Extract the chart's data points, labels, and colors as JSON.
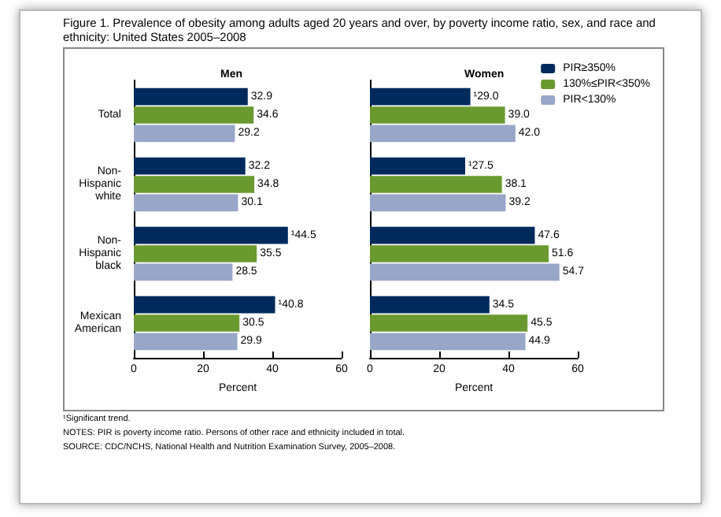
{
  "chart_data": [
    {
      "type": "bar",
      "orientation": "horizontal",
      "title": "Figure 1. Prevalence of obesity among adults aged 20 years and over, by poverty income ratio, sex, and race and ethnicity: United States 2005–2008",
      "subtitle": "Men",
      "xlabel": "Percent",
      "categories": [
        "Total",
        "Non-Hispanic white",
        "Non-Hispanic black",
        "Mexican American"
      ],
      "xlim": [
        0,
        60
      ],
      "xticks": [
        0,
        20,
        40,
        60
      ],
      "grid": false,
      "legend": false,
      "series": [
        {
          "color": "#002a5c",
          "values": [
            32.9,
            32.2,
            44.5,
            40.8
          ],
          "value_labels": [
            "32.9",
            "32.2",
            "¹44.5",
            "¹40.8"
          ]
        },
        {
          "color": "#6a9a2f",
          "values": [
            34.6,
            34.8,
            35.5,
            30.5
          ],
          "value_labels": [
            "34.6",
            "34.8",
            "35.5",
            "30.5"
          ]
        },
        {
          "color": "#98a6c8",
          "values": [
            29.2,
            30.1,
            28.5,
            29.9
          ],
          "value_labels": [
            "29.2",
            "30.1",
            "28.5",
            "29.9"
          ]
        }
      ],
      "annotations": [
        "¹Significant trend.",
        "NOTES: PIR is poverty income ratio. Persons of other race and ethnicity included in total.",
        "SOURCE: CDC/NCHS, National Health and Nutrition Examination Survey, 2005–2008."
      ]
    },
    {
      "type": "bar",
      "orientation": "horizontal",
      "subtitle": "Women",
      "xlabel": "Percent",
      "categories": [
        null,
        null,
        null,
        null
      ],
      "xlim": [
        0,
        60
      ],
      "xticks": [
        0,
        20,
        40,
        60
      ],
      "grid": false,
      "legend": "top right",
      "tick_labels": "x",
      "series": [
        {
          "name": "PIR≥350%",
          "color": "#002a5c",
          "values": [
            29.0,
            27.5,
            47.6,
            34.5
          ],
          "value_labels": [
            "¹29.0",
            "¹27.5",
            "47.6",
            "34.5"
          ]
        },
        {
          "name": "130%≤PIR<350%",
          "color": "#6a9a2f",
          "values": [
            39.0,
            38.1,
            51.6,
            45.5
          ],
          "value_labels": [
            "39.0",
            "38.1",
            "51.6",
            "45.5"
          ]
        },
        {
          "name": "PIR<130%",
          "color": "#98a6c8",
          "values": [
            42.0,
            39.2,
            54.7,
            44.9
          ],
          "value_labels": [
            "42.0",
            "39.2",
            "54.7",
            "44.9"
          ]
        }
      ]
    }
  ]
}
